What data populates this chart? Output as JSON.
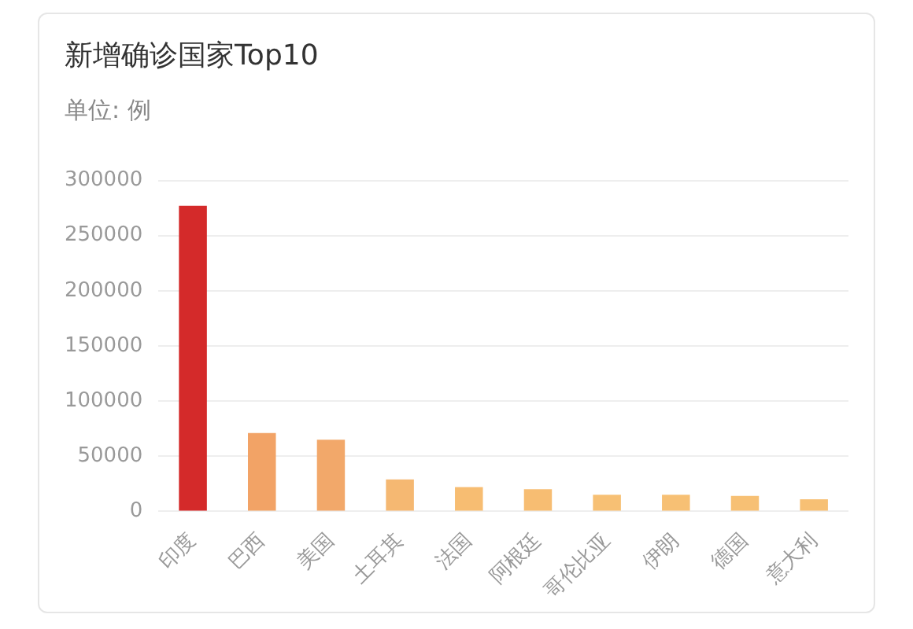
{
  "chart_data": {
    "type": "bar",
    "title": "新增确诊国家Top10",
    "subtitle": "单位: 例",
    "categories": [
      "印度",
      "巴西",
      "美国",
      "土耳其",
      "法国",
      "阿根廷",
      "哥伦比亚",
      "伊朗",
      "德国",
      "意大利"
    ],
    "values": [
      277000,
      71000,
      65000,
      29000,
      22000,
      20000,
      15000,
      15000,
      14000,
      11000
    ],
    "colors": [
      "#d42a2a",
      "#f2a366",
      "#f2a86a",
      "#f5b872",
      "#f7bd72",
      "#f7bd72",
      "#f7c074",
      "#f7c074",
      "#f7c074",
      "#f7c074"
    ],
    "ylim": [
      0,
      300000
    ],
    "yticks": [
      0,
      50000,
      100000,
      150000,
      200000,
      250000,
      300000
    ],
    "grid": "y",
    "legend": false
  }
}
